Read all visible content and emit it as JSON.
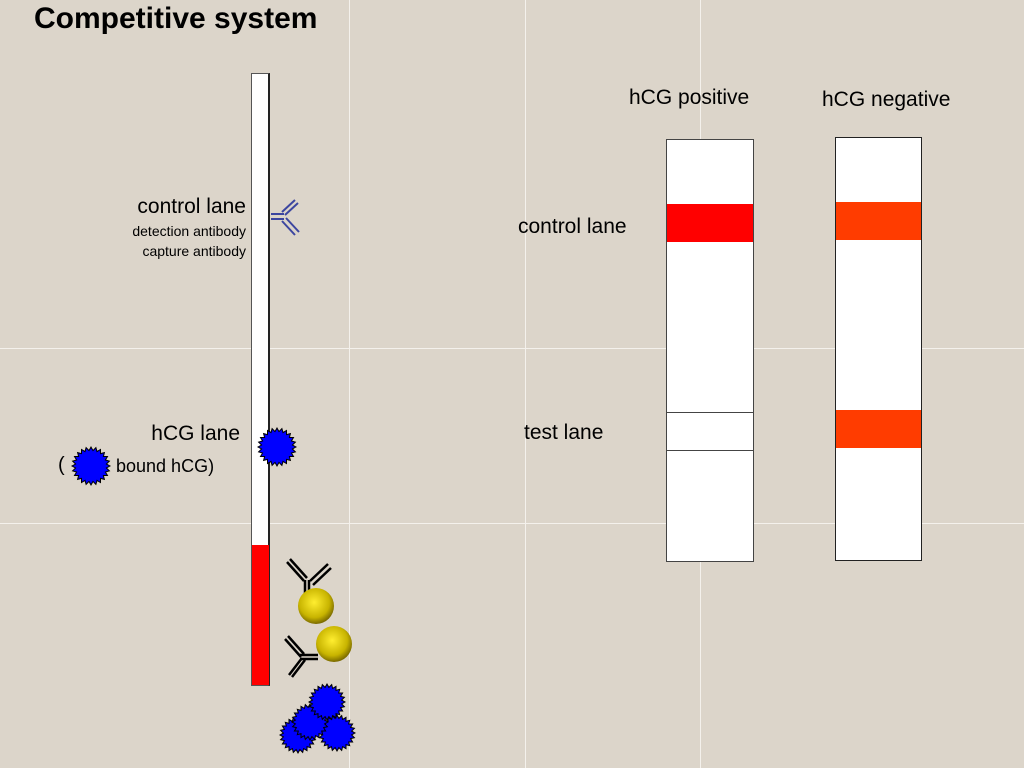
{
  "title": "Competitive system",
  "left": {
    "control_lane": "control lane",
    "detection_antibody": "detection antibody",
    "capture_antibody": "capture antibody",
    "hcg_lane": "hCG lane",
    "open_paren": "(",
    "bound_hcg": "bound hCG)"
  },
  "right": {
    "positive": "hCG positive",
    "negative": "hCG negative",
    "control_lane": "control lane",
    "test_lane": "test lane"
  },
  "colors": {
    "background": "#dcd5ca",
    "positive_band": "#ff0000",
    "negative_band": "#ff3c00",
    "sample_zone": "#ff0000",
    "hcg": "#0000ff",
    "gold": "#c8b400",
    "antibody_control": "#3c46a0"
  }
}
